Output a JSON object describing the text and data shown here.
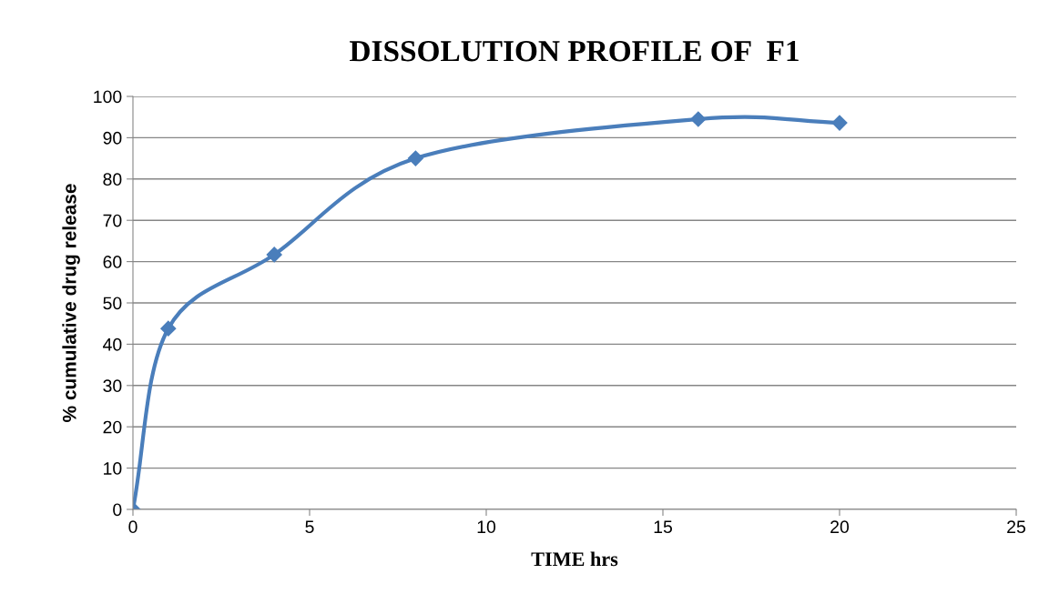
{
  "chart_data": {
    "type": "line",
    "title": "DISSOLUTION PROFILE OF  F1",
    "xlabel": "TIME hrs",
    "ylabel": "% cumulative drug release",
    "x": [
      0,
      1,
      4,
      8,
      16,
      20
    ],
    "series": [
      {
        "color": "#4a7ebb",
        "values": [
          0,
          43.8,
          61.7,
          85.0,
          94.5,
          93.6
        ]
      }
    ],
    "xlim": [
      0,
      25
    ],
    "xticks": [
      0,
      5,
      10,
      15,
      20,
      25
    ],
    "ylim": [
      0,
      100
    ],
    "yticks": [
      0,
      10,
      20,
      30,
      40,
      50,
      60,
      70,
      80,
      90,
      100
    ],
    "grid": "y",
    "marker": "diamond",
    "line_style": "solid",
    "legend": false
  }
}
